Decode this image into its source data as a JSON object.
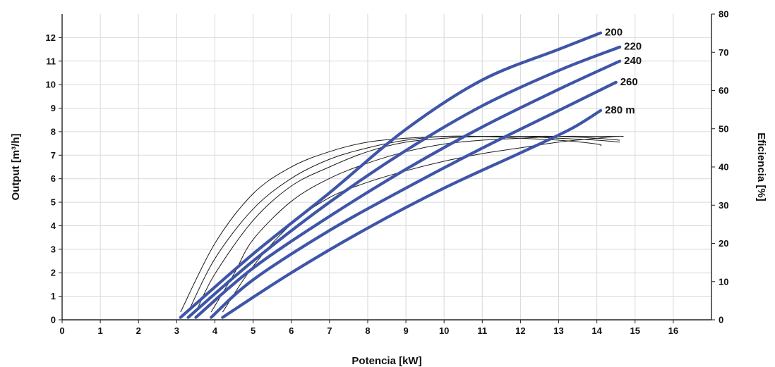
{
  "chart_data": {
    "type": "line",
    "title": "",
    "xlabel": "Potencia [kW]",
    "ylabel": "Output [m³/h]",
    "y2label": "Eficiencia [%]",
    "xlim": [
      0,
      17
    ],
    "ylim": [
      0,
      13
    ],
    "y2lim": [
      0,
      80
    ],
    "xticks": [
      0,
      1,
      2,
      3,
      4,
      5,
      6,
      7,
      8,
      9,
      10,
      11,
      12,
      13,
      14,
      15,
      16
    ],
    "yticks": [
      0,
      1,
      2,
      3,
      4,
      5,
      6,
      7,
      8,
      9,
      10,
      11,
      12
    ],
    "y2ticks": [
      0,
      10,
      20,
      30,
      40,
      50,
      60,
      70,
      80
    ],
    "grid": true,
    "legend": "none",
    "colors": {
      "output": "#3f55a8",
      "efficiency": "#1a1a1a",
      "grid": "#d9d9d9"
    },
    "series": [
      {
        "name": "200",
        "kind": "output",
        "x": [
          3.1,
          5,
          7,
          9,
          11,
          13,
          14.1
        ],
        "y": [
          0.1,
          2.8,
          5.4,
          8.1,
          10.2,
          11.5,
          12.2
        ]
      },
      {
        "name": "220",
        "kind": "output",
        "x": [
          3.3,
          5,
          7,
          9,
          11,
          13,
          14.6
        ],
        "y": [
          0.1,
          2.5,
          5.0,
          7.2,
          9.1,
          10.6,
          11.6
        ]
      },
      {
        "name": "240",
        "kind": "output",
        "x": [
          3.5,
          5,
          7,
          9,
          11,
          13,
          14.6
        ],
        "y": [
          0.1,
          2.2,
          4.4,
          6.4,
          8.2,
          9.8,
          11.0
        ]
      },
      {
        "name": "260",
        "kind": "output",
        "x": [
          3.9,
          5,
          7,
          9,
          11,
          13,
          14.5
        ],
        "y": [
          0.1,
          1.7,
          3.8,
          5.6,
          7.3,
          8.9,
          10.1
        ]
      },
      {
        "name": "280 m",
        "kind": "output",
        "x": [
          4.2,
          6,
          8,
          10,
          12,
          13.3,
          14.1
        ],
        "y": [
          0.1,
          2.0,
          3.9,
          5.6,
          7.1,
          8.1,
          8.9
        ]
      },
      {
        "name": "",
        "kind": "efficiency",
        "x": [
          3.1,
          4,
          5,
          6,
          7,
          8,
          9,
          10,
          11,
          12,
          13,
          14,
          14.1
        ],
        "y2": [
          2,
          20,
          33,
          40,
          44,
          46.5,
          47.5,
          48,
          48,
          47.5,
          47,
          46,
          45.5
        ]
      },
      {
        "name": "",
        "kind": "efficiency",
        "x": [
          3.3,
          4,
          5,
          6,
          7,
          8,
          9,
          10,
          11,
          12,
          13,
          14,
          14.6
        ],
        "y2": [
          2,
          16,
          29,
          37,
          42,
          45,
          47,
          48,
          48,
          48,
          47.5,
          47,
          46.5
        ]
      },
      {
        "name": "",
        "kind": "efficiency",
        "x": [
          3.5,
          4,
          5,
          6,
          7,
          8,
          9,
          10,
          11,
          12,
          13,
          14,
          14.6
        ],
        "y2": [
          2,
          12,
          26,
          35,
          40,
          44,
          46.5,
          47.5,
          48,
          48,
          48,
          47.5,
          47
        ]
      },
      {
        "name": "",
        "kind": "efficiency",
        "x": [
          3.9,
          4.5,
          5,
          6,
          7,
          8,
          9,
          10,
          11,
          12,
          13,
          14,
          14.5
        ],
        "y2": [
          2,
          12,
          21,
          31,
          37,
          41,
          44,
          46,
          47,
          47.5,
          48,
          48,
          48
        ]
      },
      {
        "name": "",
        "kind": "efficiency",
        "x": [
          4.2,
          5,
          6,
          7,
          8,
          9,
          10,
          11,
          12,
          13,
          14,
          14.5,
          14.7
        ],
        "y2": [
          2,
          14,
          25,
          32,
          36,
          39,
          41.5,
          43.5,
          45,
          46.5,
          47.5,
          48,
          48
        ]
      }
    ]
  }
}
